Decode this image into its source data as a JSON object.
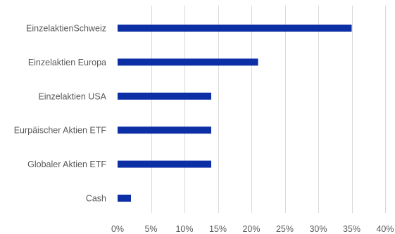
{
  "chart_data": {
    "type": "bar",
    "orientation": "horizontal",
    "categories": [
      "EinzelaktienSchweiz",
      "Einzelaktien Europa",
      "Einzelaktien USA",
      "Eurpäischer Aktien ETF",
      "Globaler Aktien ETF",
      "Cash"
    ],
    "values": [
      35,
      21,
      14,
      14,
      14,
      2
    ],
    "value_unit": "%",
    "xlim": [
      0,
      40
    ],
    "xticks": [
      0,
      5,
      10,
      15,
      20,
      25,
      30,
      35,
      40
    ],
    "xtick_labels": [
      "0%",
      "5%",
      "10%",
      "15%",
      "20%",
      "25%",
      "30%",
      "35%",
      "40%"
    ],
    "grid": "vertical",
    "legend": "none",
    "bar_color": "#0d2fa6"
  }
}
